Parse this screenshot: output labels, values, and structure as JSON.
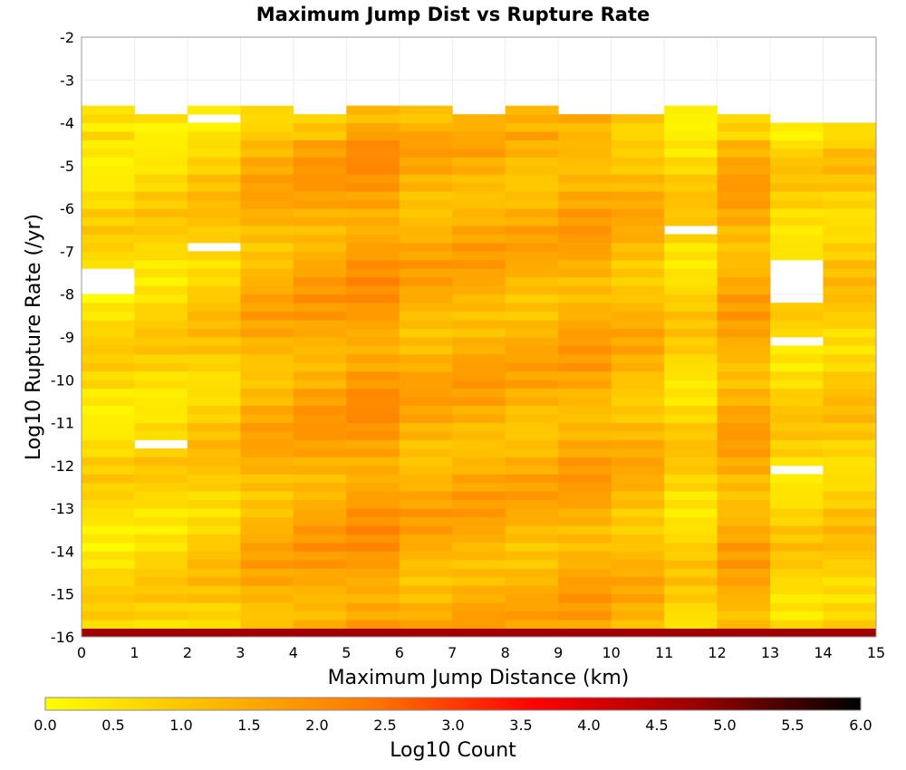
{
  "chart_data": {
    "type": "heatmap",
    "title": "Maximum Jump Dist vs Rupture Rate",
    "xlabel": "Maximum Jump Distance (km)",
    "ylabel": "Log10 Rupture Rate (/yr)",
    "xlim": [
      0,
      15
    ],
    "ylim": [
      -16,
      -2
    ],
    "x_ticks": [
      "0",
      "1",
      "2",
      "3",
      "4",
      "5",
      "6",
      "7",
      "8",
      "9",
      "10",
      "11",
      "12",
      "13",
      "14",
      "15"
    ],
    "y_ticks": [
      "-2",
      "-3",
      "-4",
      "-5",
      "-6",
      "-7",
      "-8",
      "-9",
      "-10",
      "-11",
      "-12",
      "-13",
      "-14",
      "-15",
      "-16"
    ],
    "x_bin_width": 1,
    "y_bin_height": 0.2,
    "y_bin_start": -16,
    "grid": true,
    "colorbar": {
      "label": "Log10 Count",
      "min": 0.0,
      "max": 6.0,
      "ticks": [
        "0.0",
        "0.5",
        "1.0",
        "1.5",
        "2.0",
        "2.5",
        "3.0",
        "3.5",
        "4.0",
        "4.5",
        "5.0",
        "5.5",
        "6.0"
      ],
      "colors": [
        "#ffff00",
        "#ffbb00",
        "#ff7700",
        "#ff0000",
        "#990000",
        "#000000"
      ]
    },
    "bottom_row_log10_count": [
      4.7,
      4.7,
      4.7,
      4.7,
      4.7,
      4.7,
      4.7,
      4.7,
      4.7,
      4.7,
      4.7,
      4.7,
      4.7,
      4.7,
      4.7
    ],
    "columns": [
      {
        "x_bin": 0,
        "top_rate": -3.8,
        "typical": 0.6,
        "gaps": [
          -7.6,
          -7.8,
          -8.0
        ]
      },
      {
        "x_bin": 1,
        "top_rate": -4.0,
        "typical": 0.7,
        "gaps": [
          -11.6
        ]
      },
      {
        "x_bin": 2,
        "top_rate": -3.8,
        "typical": 0.9,
        "gaps": [
          -4.0,
          -7.0
        ]
      },
      {
        "x_bin": 3,
        "top_rate": -3.8,
        "typical": 1.35,
        "gaps": []
      },
      {
        "x_bin": 4,
        "top_rate": -4.0,
        "typical": 1.55,
        "gaps": []
      },
      {
        "x_bin": 5,
        "top_rate": -3.8,
        "typical": 1.75,
        "gaps": []
      },
      {
        "x_bin": 6,
        "top_rate": -3.8,
        "typical": 1.4,
        "gaps": []
      },
      {
        "x_bin": 7,
        "top_rate": -4.0,
        "typical": 1.45,
        "gaps": []
      },
      {
        "x_bin": 8,
        "top_rate": -3.8,
        "typical": 1.35,
        "gaps": []
      },
      {
        "x_bin": 9,
        "top_rate": -4.0,
        "typical": 1.5,
        "gaps": []
      },
      {
        "x_bin": 10,
        "top_rate": -4.0,
        "typical": 1.25,
        "gaps": []
      },
      {
        "x_bin": 11,
        "top_rate": -3.8,
        "typical": 0.75,
        "gaps": [
          -6.6
        ]
      },
      {
        "x_bin": 12,
        "top_rate": -4.0,
        "typical": 1.45,
        "gaps": []
      },
      {
        "x_bin": 13,
        "top_rate": -4.2,
        "typical": 0.75,
        "gaps": [
          -7.4,
          -7.6,
          -7.8,
          -8.0,
          -8.2,
          -9.2,
          -12.2
        ]
      },
      {
        "x_bin": 14,
        "top_rate": -4.2,
        "typical": 0.9,
        "gaps": []
      }
    ]
  }
}
